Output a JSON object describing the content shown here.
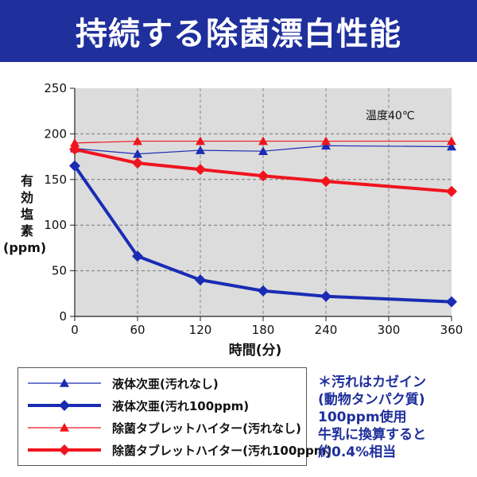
{
  "title": "持続する除菌漂白性能",
  "colors": {
    "blue": "#1a2cb4",
    "red": "#f0141e",
    "banner": "#1f2f9c",
    "plot_bg": "#dcdcdc"
  },
  "chart_data": {
    "type": "line",
    "title": "持続する除菌漂白性能",
    "xlabel": "時間(分)",
    "ylabel": "有効塩素(ppm)",
    "ylabel_lines": [
      "有",
      "効",
      "塩",
      "素",
      "(ppm)"
    ],
    "annotation": "温度40℃",
    "x": [
      0,
      60,
      120,
      180,
      240,
      300,
      360
    ],
    "xlim": [
      0,
      360
    ],
    "ylim": [
      0,
      250
    ],
    "x_ticks": [
      "0",
      "60",
      "120",
      "180",
      "240",
      "300",
      "360"
    ],
    "y_ticks": [
      "0",
      "50",
      "100",
      "150",
      "200",
      "250"
    ],
    "series": [
      {
        "name": "液体次亜(汚れなし)",
        "color": "#1a2cb4",
        "marker": "triangle",
        "width": 1.2,
        "x": [
          0,
          60,
          120,
          180,
          240,
          360
        ],
        "values": [
          184,
          178,
          182,
          181,
          187,
          186
        ]
      },
      {
        "name": "液体次亜(汚れ100ppm)",
        "color": "#1a2cb4",
        "marker": "diamond",
        "width": 4,
        "x": [
          0,
          60,
          120,
          180,
          240,
          360
        ],
        "values": [
          165,
          66,
          40,
          28,
          22,
          16
        ]
      },
      {
        "name": "除菌タブレットハイター(汚れなし)",
        "color": "#f0141e",
        "marker": "triangle",
        "width": 1.2,
        "x": [
          0,
          60,
          120,
          180,
          240,
          360
        ],
        "values": [
          190,
          192,
          192,
          192,
          192,
          192
        ]
      },
      {
        "name": "除菌タブレットハイター(汚れ100ppm)",
        "color": "#f0141e",
        "marker": "diamond",
        "width": 4,
        "x": [
          0,
          60,
          120,
          180,
          240,
          360
        ],
        "values": [
          183,
          168,
          161,
          154,
          148,
          137
        ]
      }
    ]
  },
  "note_lines": [
    "＊汚れはカゼイン",
    "(動物タンパク質)",
    "100ppm使用",
    "牛乳に換算すると",
    "約0.4%相当"
  ]
}
